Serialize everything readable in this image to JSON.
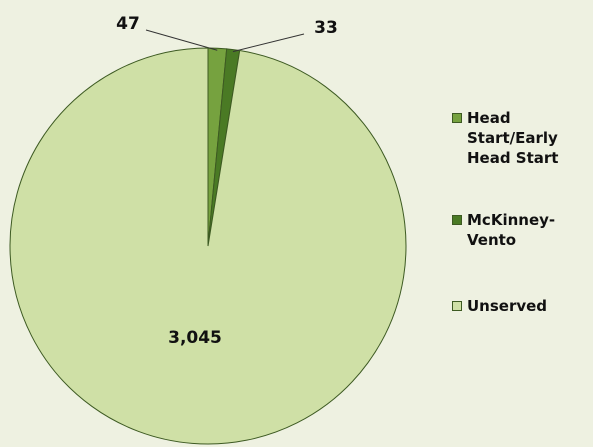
{
  "chart_data": {
    "type": "pie",
    "categories": [
      "Head Start/Early Head Start",
      "McKinney-Vento",
      "Unserved"
    ],
    "values": [
      47,
      33,
      3045
    ],
    "value_labels": [
      "47",
      "33",
      "3,045"
    ],
    "colors": [
      "#76a23f",
      "#4a7a24",
      "#cfe0a6"
    ],
    "legend": "right"
  }
}
